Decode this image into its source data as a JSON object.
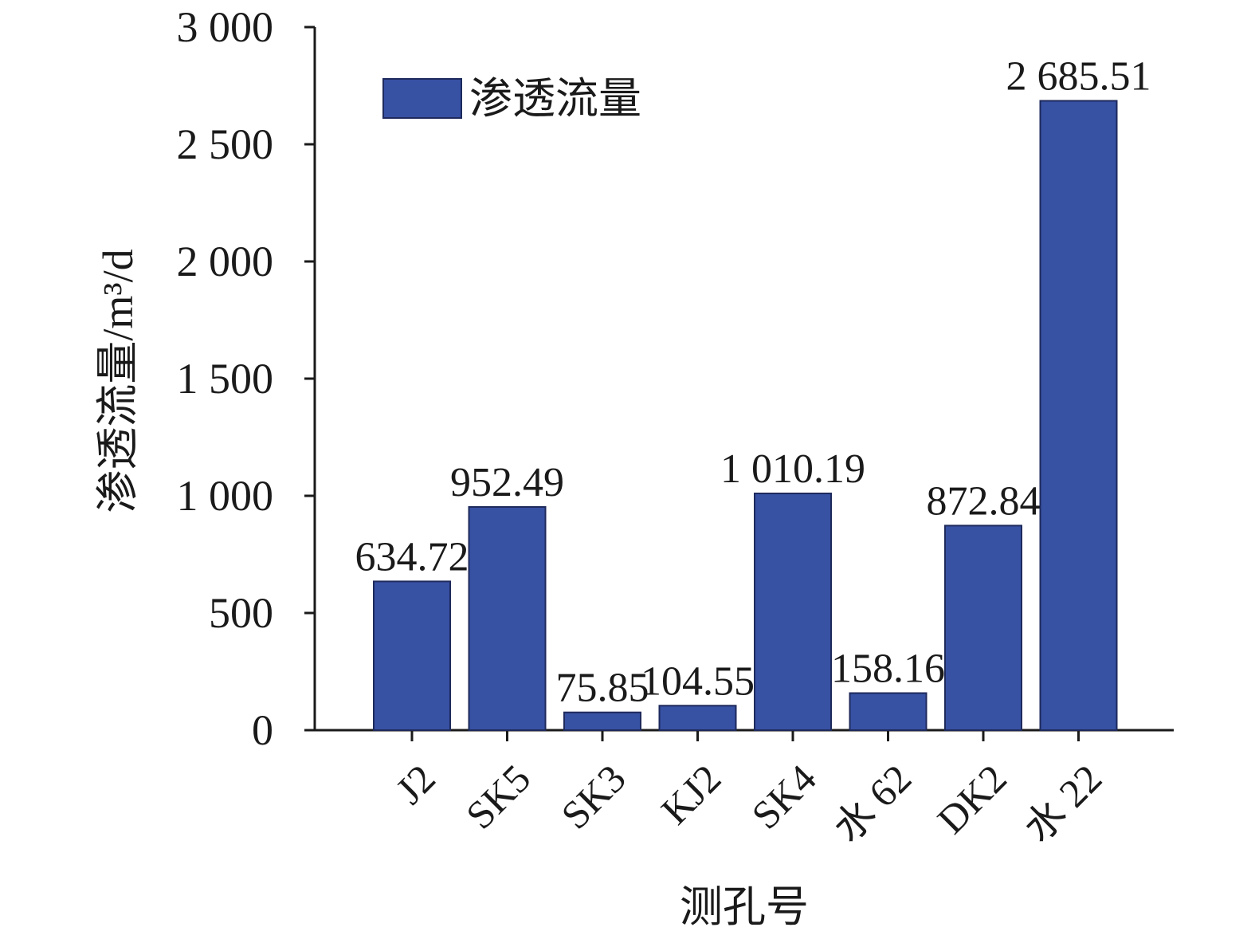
{
  "chart_data": {
    "type": "bar",
    "categories": [
      "J2",
      "SK5",
      "SK3",
      "KJ2",
      "SK4",
      "水 62",
      "DK2",
      "水 22"
    ],
    "series": [
      {
        "name": "渗透流量",
        "values": [
          634.72,
          952.49,
          75.85,
          104.55,
          1010.19,
          158.16,
          872.84,
          2685.51
        ],
        "labels": [
          "634.72",
          "952.49",
          "75.85",
          "104.55",
          "1 010.19",
          "158.16",
          "872.84",
          "2 685.51"
        ]
      }
    ],
    "xlabel": "测孔号",
    "ylabel": "渗透流量/m³/d",
    "ylim": [
      0,
      3000
    ],
    "yticks": [
      0,
      500,
      1000,
      1500,
      2000,
      2500,
      3000
    ],
    "ytick_labels": [
      "0",
      "500",
      "1 000",
      "1 500",
      "2 000",
      "2 500",
      "3 000"
    ],
    "grid": false,
    "legend_position": "top-left",
    "colors": {
      "bar_fill": "#3751a3",
      "bar_stroke": "#1e2a5c",
      "axis": "#1a1a1a"
    }
  }
}
